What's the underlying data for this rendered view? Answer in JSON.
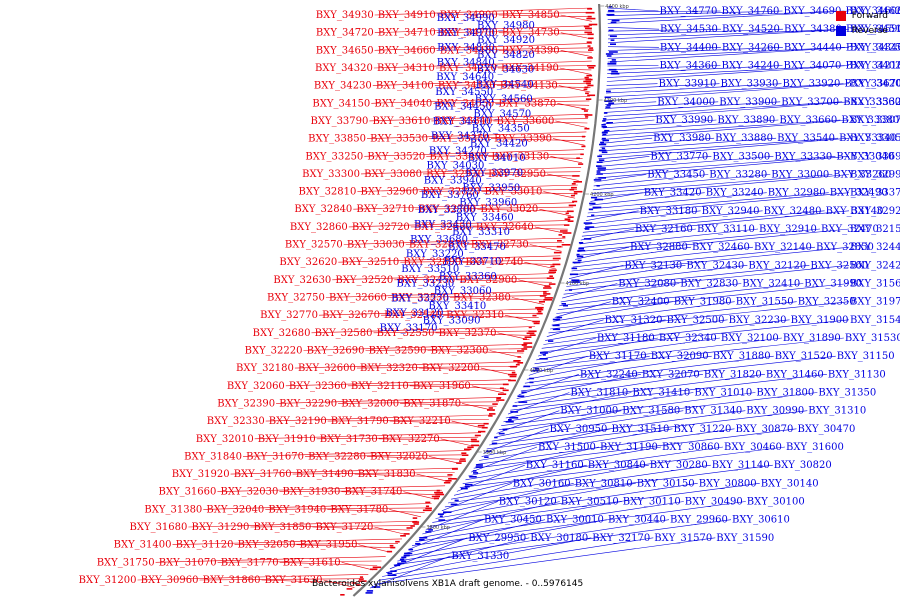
{
  "caption": "Bacteroides xylanisolvens XB1A draft genome. - 0..5976145",
  "legend": [
    {
      "label": "Forward",
      "color": "#e8000b"
    },
    {
      "label": "Reverse",
      "color": "#0000e0"
    }
  ],
  "colors": {
    "forward": "#e8000b",
    "reverse": "#0000e0",
    "backbone": "#888888"
  },
  "ticks": [
    "4400 kbp",
    "4300 kbp",
    "4200 kbp",
    "4100 kbp",
    "4000 kbp",
    "3900 kbp",
    "3800 kbp"
  ],
  "forward_labels": [
    "BXY_34930",
    "BXY_34910",
    "BXY_34900",
    "BXY_34850",
    "BXY_34720",
    "BXY_34710",
    "BXY_34700",
    "BXY_34730",
    "BXY_34650",
    "BXY_34660",
    "BXY_34480",
    "BXY_34390",
    "BXY_34320",
    "BXY_34310",
    "BXY_34220",
    "BXY_34190",
    "BXY_34230",
    "BXY_34100",
    "BXY_34140",
    "BXY_34130",
    "BXY_34150",
    "BXY_34040",
    "BXY_34050",
    "BXY_33870",
    "BXY_33790",
    "BXY_33610",
    "BXY_33840",
    "BXY_33600",
    "BXY_33850",
    "BXY_33530",
    "BXY_33350",
    "BXY_33390",
    "BXY_33250",
    "BXY_33520",
    "BXY_33400",
    "BXY_33130",
    "BXY_33300",
    "BXY_33080",
    "BXY_32930",
    "BXY_32950",
    "BXY_32810",
    "BXY_32960",
    "BXY_32820",
    "BXY_33010",
    "BXY_32840",
    "BXY_32710",
    "BXY_32700",
    "BXY_33020",
    "BXY_32860",
    "BXY_32720",
    "BXY_32650",
    "BXY_32640",
    "BXY_32570",
    "BXY_33030",
    "BXY_32870",
    "BXY_32730",
    "BXY_32620",
    "BXY_32510",
    "BXY_32890",
    "BXY_32740",
    "BXY_32630",
    "BXY_32520",
    "BXY_32450",
    "BXY_32900",
    "BXY_32750",
    "BXY_32660",
    "BXY_32530",
    "BXY_32380",
    "BXY_32770",
    "BXY_32670",
    "BXY_32540",
    "BXY_32310",
    "BXY_32680",
    "BXY_32580",
    "BXY_32550",
    "BXY_32370",
    "BXY_32220",
    "BXY_32690",
    "BXY_32590",
    "BXY_32300",
    "BXY_32180",
    "BXY_32600",
    "BXY_32320",
    "BXY_32200",
    "BXY_32060",
    "BXY_32360",
    "BXY_32110",
    "BXY_31960",
    "BXY_32390",
    "BXY_32290",
    "BXY_32000",
    "BXY_31870",
    "BXY_32330",
    "BXY_32190",
    "BXY_31790",
    "BXY_32210",
    "BXY_32010",
    "BXY_31910",
    "BXY_31730",
    "BXY_32270",
    "BXY_31840",
    "BXY_31670",
    "BXY_32280",
    "BXY_32020",
    "BXY_31920",
    "BXY_31760",
    "BXY_31490",
    "BXY_31830",
    "BXY_31660",
    "BXY_32030",
    "BXY_31930",
    "BXY_31740",
    "BXY_31380",
    "BXY_32040",
    "BXY_31940",
    "BXY_31780",
    "BXY_31680",
    "BXY_31290",
    "BXY_31850",
    "BXY_31720",
    "BXY_31400",
    "BXY_31120",
    "BXY_32050",
    "BXY_31950",
    "BXY_31750",
    "BXY_31070",
    "BXY_31770",
    "BXY_31610",
    "BXY_31200",
    "BXY_30960",
    "BXY_31860",
    "BXY_31630"
  ],
  "reverse_labels": [
    "BXY_34990",
    "BXY_34980",
    "BXY_34970",
    "BXY_34920",
    "BXY_34830",
    "BXY_34820",
    "BXY_34840",
    "BXY_34630",
    "BXY_34640",
    "BXY_34540",
    "BXY_34550",
    "BXY_34560",
    "BXY_34450",
    "BXY_34570",
    "BXY_34410",
    "BXY_34350",
    "BXY_34370",
    "BXY_34420",
    "BXY_34270",
    "BXY_34010",
    "BXY_34030",
    "BXY_33970",
    "BXY_33940",
    "BXY_33950",
    "BXY_33760",
    "BXY_33960",
    "BXY_33800",
    "BXY_33460",
    "BXY_33430",
    "BXY_33310",
    "BXY_33680",
    "BXY_33470",
    "BXY_33220",
    "BXY_33710",
    "BXY_33510",
    "BXY_33360",
    "BXY_33230",
    "BXY_33060",
    "BXY_33270",
    "BXY_33410",
    "BXY_33120",
    "BXY_33090",
    "BXY_33170",
    "BXY_34770",
    "BXY_34760",
    "BXY_34690",
    "BXY_34600",
    "BXY_34620",
    "BXY_34530",
    "BXY_34520",
    "BXY_34380",
    "BXY_34590",
    "BXY_34510",
    "BXY_34400",
    "BXY_34260",
    "BXY_34440",
    "BXY_34340",
    "BXY_34250",
    "BXY_34360",
    "BXY_34240",
    "BXY_34070",
    "BXY_34210",
    "BXY_34020",
    "BXY_33910",
    "BXY_33930",
    "BXY_33920",
    "BXY_33670",
    "BXY_34200",
    "BXY_34000",
    "BXY_33900",
    "BXY_33700",
    "BXY_33560",
    "BXY_33320",
    "BXY_33990",
    "BXY_33890",
    "BXY_33660",
    "BXY_33380",
    "BXY_33070",
    "BXY_33980",
    "BXY_33880",
    "BXY_33540",
    "BXY_33340",
    "BXY_33050",
    "BXY_33770",
    "BXY_33500",
    "BXY_33330",
    "BXY_33040",
    "BXY_33690",
    "BXY_33450",
    "BXY_33280",
    "BXY_33000",
    "BXY_33260",
    "BXY_32990",
    "BXY_33420",
    "BXY_33240",
    "BXY_32980",
    "BXY_32490",
    "BXY_33370",
    "BXY_33180",
    "BXY_32940",
    "BXY_32480",
    "BXY_33140",
    "BXY_32920",
    "BXY_32160",
    "BXY_33110",
    "BXY_32910",
    "BXY_32470",
    "BXY_32150",
    "BXY_32880",
    "BXY_32460",
    "BXY_32140",
    "BXY_32850",
    "BXY_32440",
    "BXY_32130",
    "BXY_32430",
    "BXY_32120",
    "BXY_32560",
    "BXY_32420",
    "BXY_32080",
    "BXY_32830",
    "BXY_32410",
    "BXY_31990",
    "BXY_31560",
    "BXY_32400",
    "BXY_31980",
    "BXY_31550",
    "BXY_32350",
    "BXY_31970",
    "BXY_31320",
    "BXY_32500",
    "BXY_32230",
    "BXY_31900",
    "BXY_31540",
    "BXY_31180",
    "BXY_32340",
    "BXY_32100",
    "BXY_31890",
    "BXY_31530",
    "BXY_31170",
    "BXY_32090",
    "BXY_31880",
    "BXY_31520",
    "BXY_31150",
    "BXY_32240",
    "BXY_32070",
    "BXY_31820",
    "BXY_31460",
    "BXY_31130",
    "BXY_31810",
    "BXY_31410",
    "BXY_31010",
    "BXY_31800",
    "BXY_31350",
    "BXY_31000",
    "BXY_31580",
    "BXY_31340",
    "BXY_30990",
    "BXY_31310",
    "BXY_30950",
    "BXY_31510",
    "BXY_31220",
    "BXY_30870",
    "BXY_30470",
    "BXY_31500",
    "BXY_31190",
    "BXY_30860",
    "BXY_30460",
    "BXY_31600",
    "BXY_31160",
    "BXY_30840",
    "BXY_30280",
    "BXY_31140",
    "BXY_30820",
    "BXY_30160",
    "BXY_30810",
    "BXY_30150",
    "BXY_30800",
    "BXY_30140",
    "BXY_30120",
    "BXY_30510",
    "BXY_30110",
    "BXY_30490",
    "BXY_30100",
    "BXY_30450",
    "BXY_30010",
    "BXY_30440",
    "BXY_29960",
    "BXY_30610",
    "BXY_29950",
    "BXY_30180",
    "BXY_32170",
    "BXY_31570",
    "BXY_31590",
    "BXY_31330"
  ]
}
